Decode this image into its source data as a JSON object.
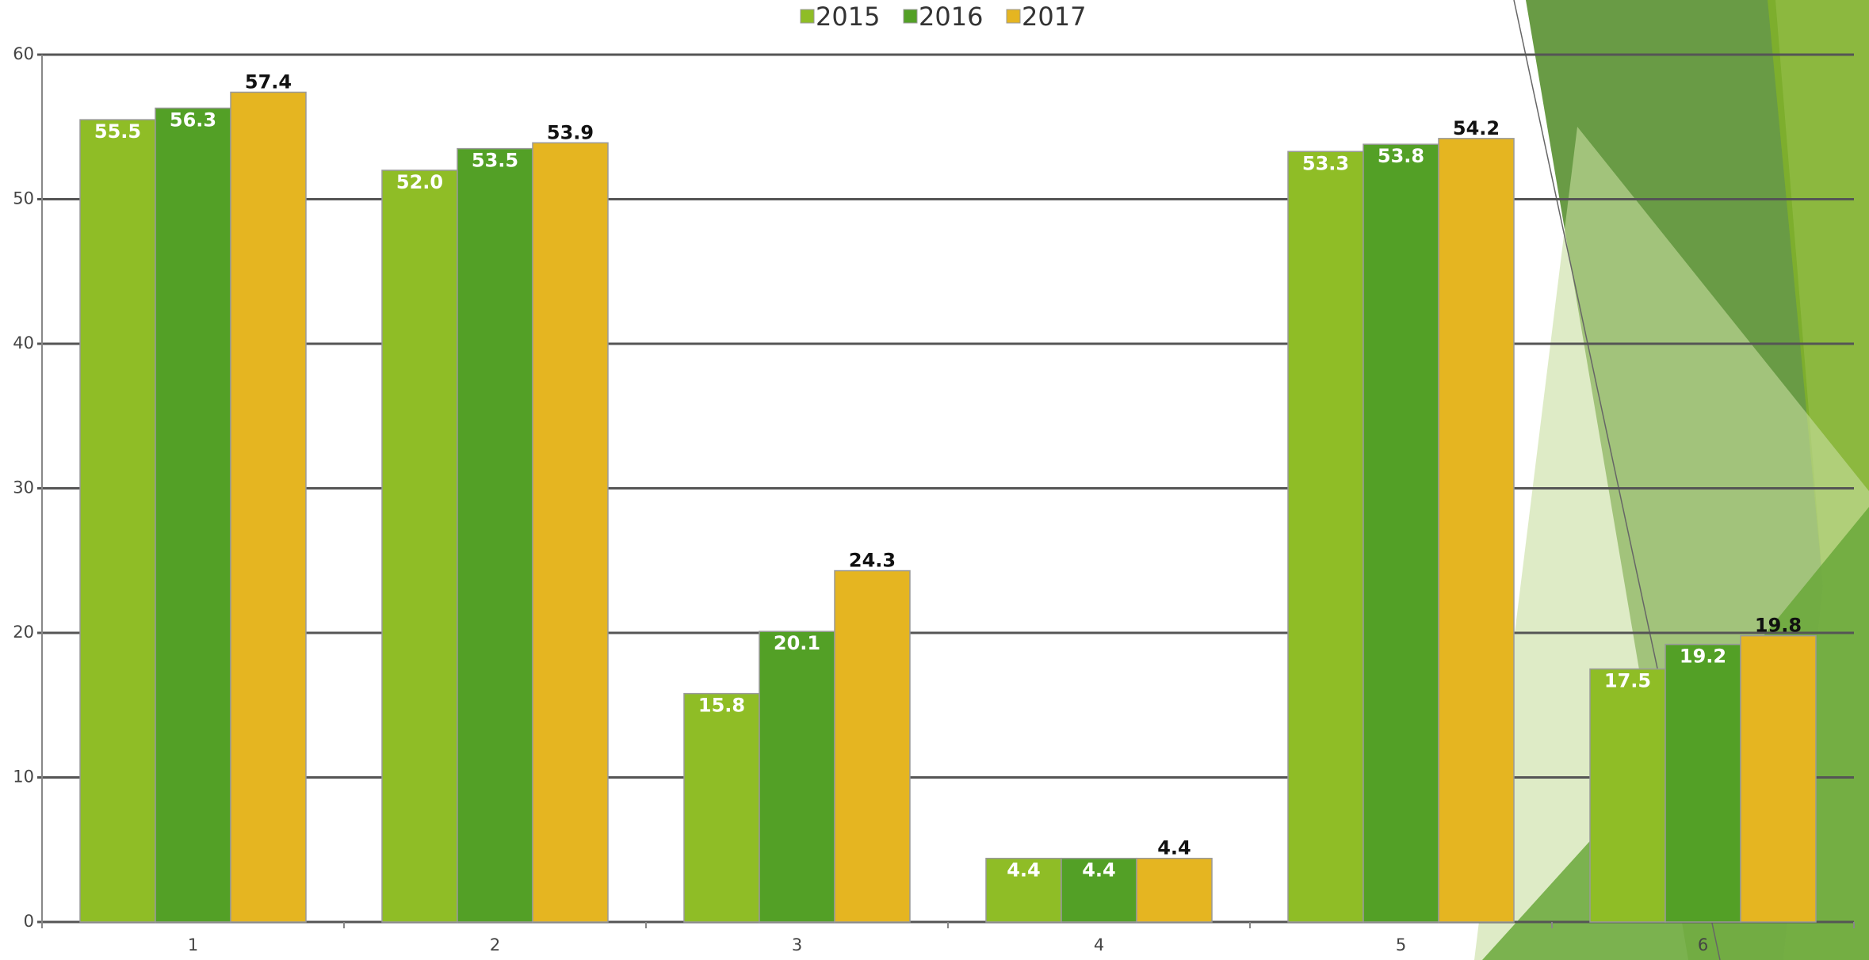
{
  "chart_data": {
    "type": "bar",
    "categories": [
      "1",
      "2",
      "3",
      "4",
      "5",
      "6"
    ],
    "series": [
      {
        "name": "2015",
        "color": "#8fbd26",
        "values": [
          55.5,
          52,
          15.8,
          4.4,
          53.3,
          17.5
        ],
        "value_labels": [
          "55.5",
          "52.0",
          "15.8",
          "4.4",
          "53.3",
          "17.5"
        ]
      },
      {
        "name": "2016",
        "color": "#53a026",
        "values": [
          56.3,
          53.5,
          20.1,
          4.4,
          53.8,
          19.2
        ],
        "value_labels": [
          "56.3",
          "53.5",
          "20.1",
          "4.4",
          "53.8",
          "19.2"
        ]
      },
      {
        "name": "2017",
        "color": "#e5b521",
        "values": [
          57.4,
          53.9,
          24.3,
          4.4,
          54.2,
          19.8
        ],
        "value_labels": [
          "57.4",
          "53.9",
          "24.3",
          "4.4",
          "54.2",
          "19.8"
        ]
      }
    ],
    "ylim": [
      0,
      60
    ],
    "yticks": [
      0,
      10,
      20,
      30,
      40,
      50,
      60
    ],
    "grid": true,
    "legend": "top"
  }
}
